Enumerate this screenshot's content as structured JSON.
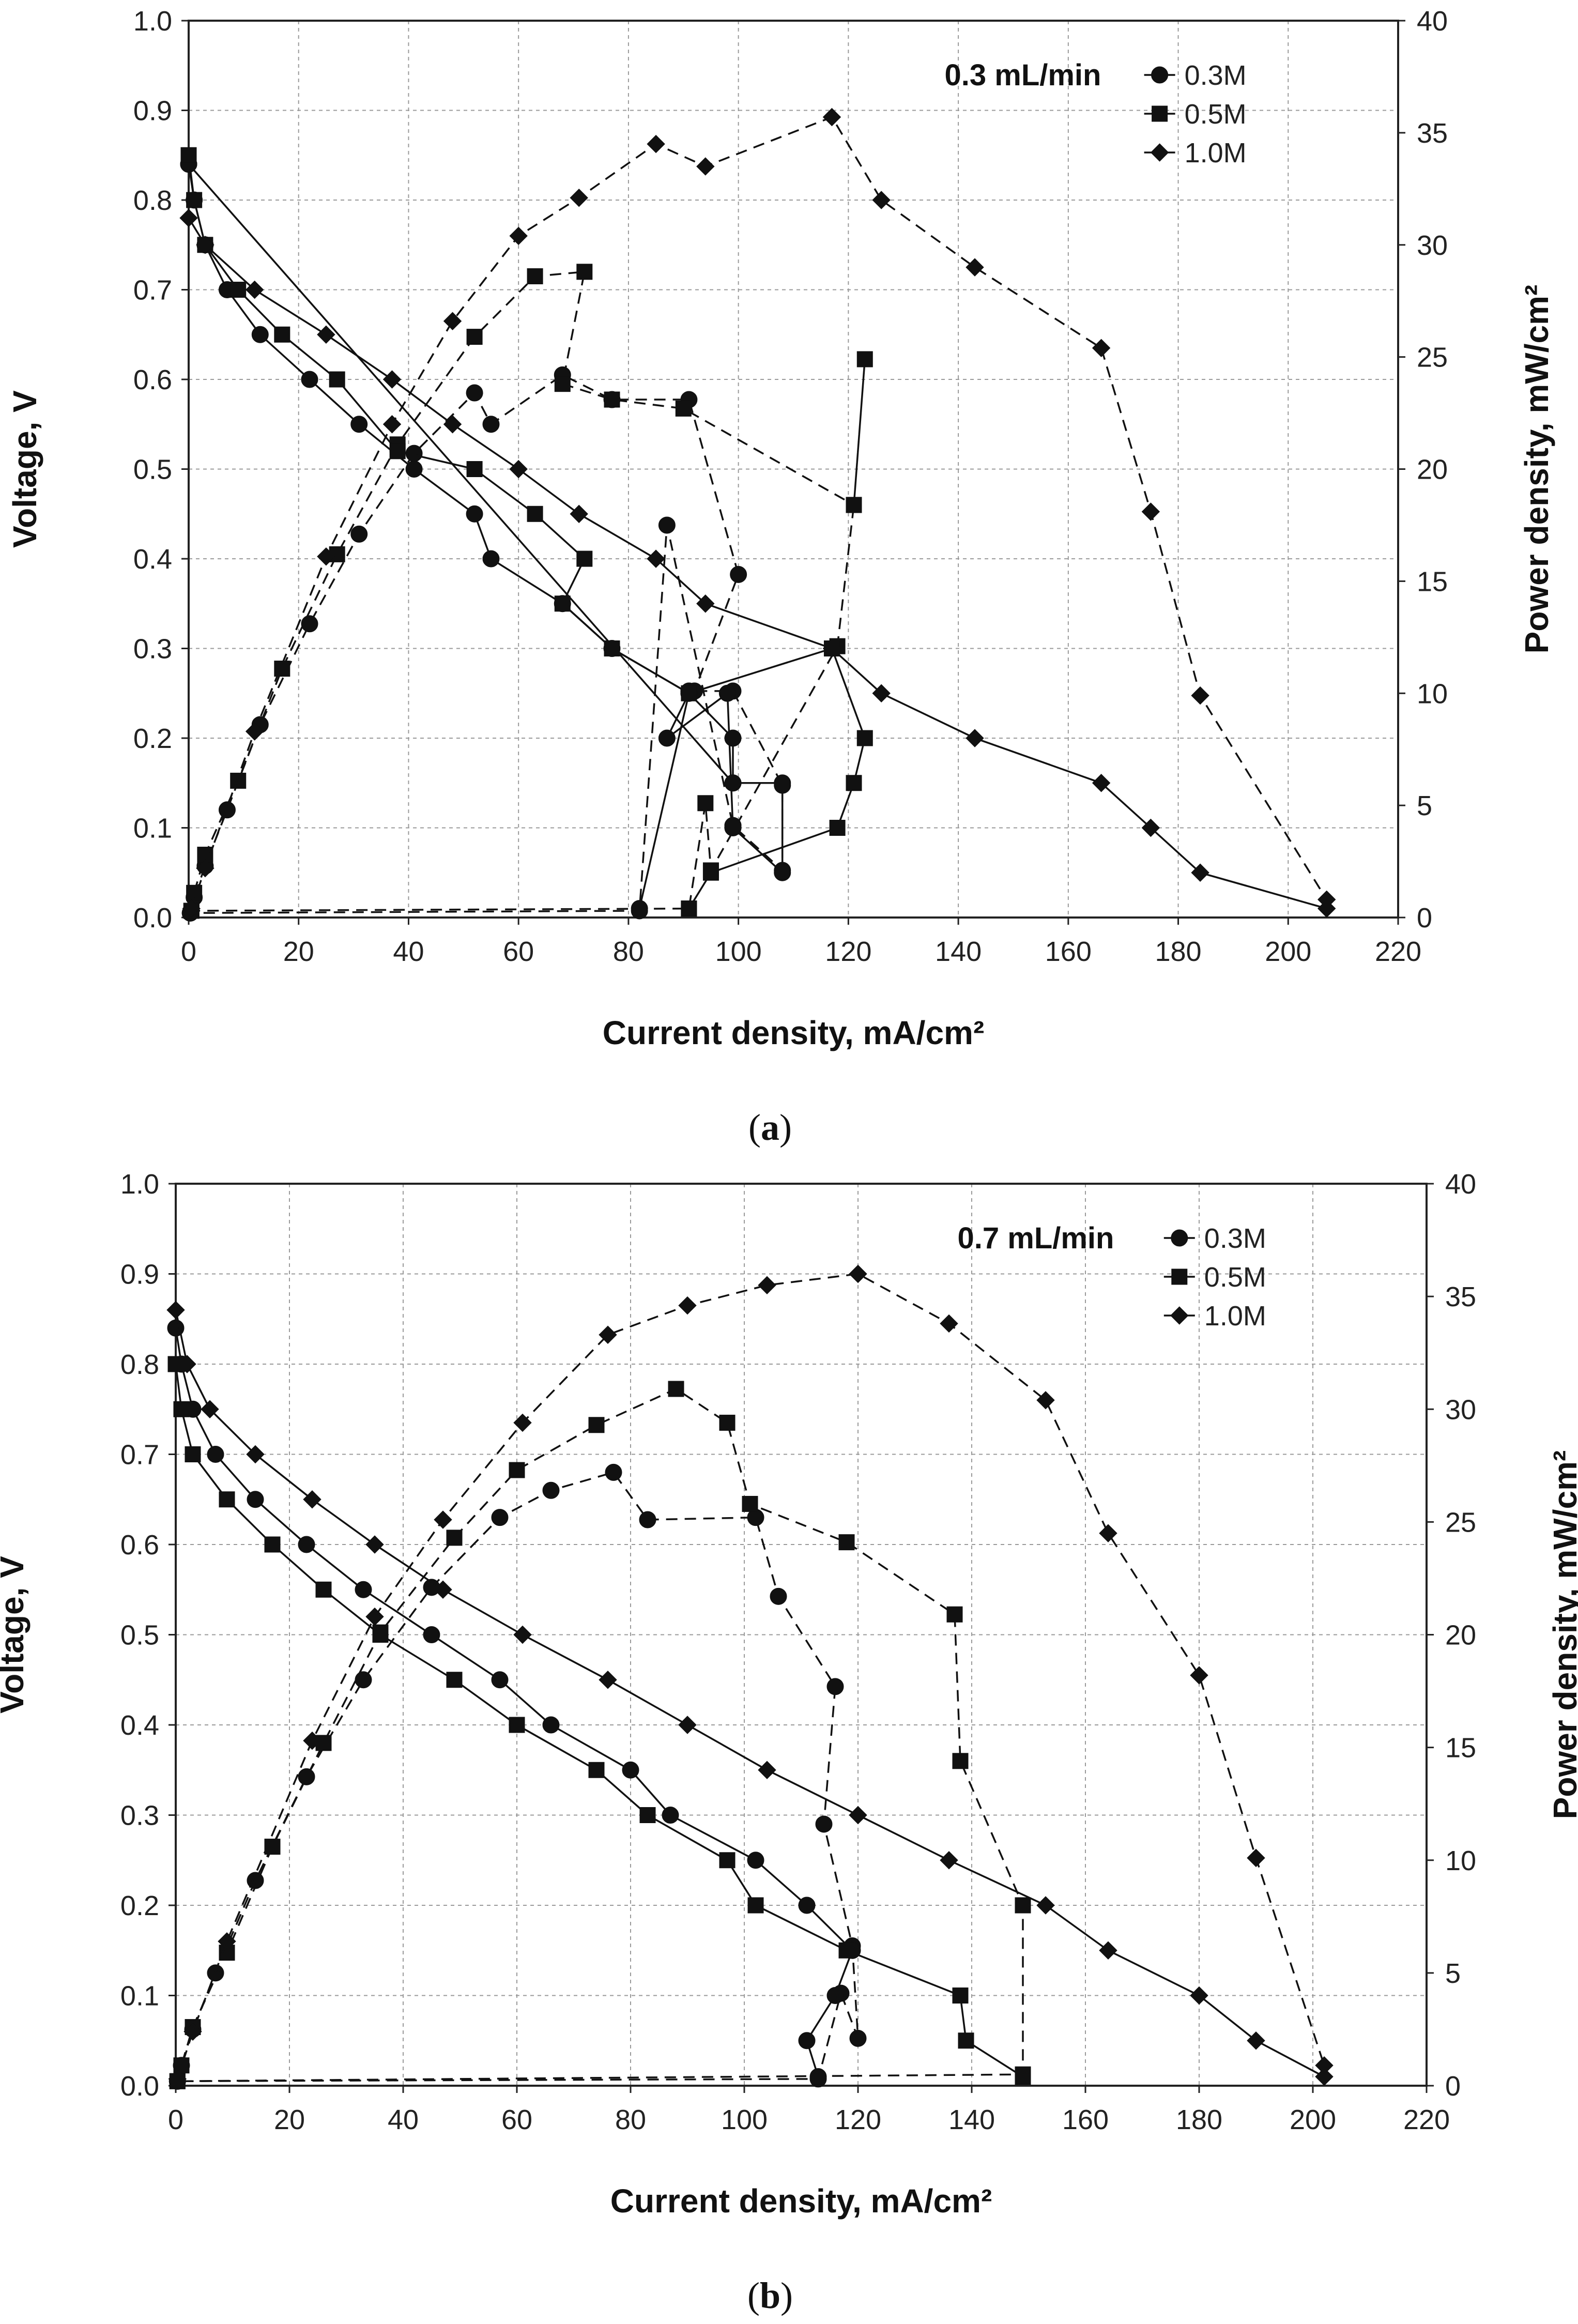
{
  "figure": {
    "panels": [
      "panel_a",
      "panel_b"
    ]
  },
  "chart_data": [
    {
      "id": "panel_a",
      "type": "line",
      "caption_letter": "a",
      "annotation": "0.3 mL/min",
      "xlabel": "Current density, mA/cm²",
      "ylabel_left": "Voltage, V",
      "ylabel_right": "Power density, mW/cm²",
      "xlim": [
        0,
        220
      ],
      "ylim_left": [
        0.0,
        1.0
      ],
      "ylim_right": [
        0,
        40
      ],
      "x_ticks": [
        "0",
        "20",
        "40",
        "60",
        "80",
        "100",
        "120",
        "140",
        "160",
        "180",
        "200",
        "220"
      ],
      "y_left_ticks": [
        "0.0",
        "0.1",
        "0.2",
        "0.3",
        "0.4",
        "0.5",
        "0.6",
        "0.7",
        "0.8",
        "0.9",
        "1.0"
      ],
      "y_right_ticks": [
        "0",
        "5",
        "10",
        "15",
        "20",
        "25",
        "30",
        "35",
        "40"
      ],
      "grid": true,
      "legend": [
        "0.3M",
        "0.5M",
        "1.0M"
      ],
      "series": [
        {
          "name": "0.3M",
          "marker": "circle",
          "polarization": {
            "x": [
              0,
              1,
              3,
              7,
              13,
              22,
              31,
              41,
              52,
              55,
              68,
              77,
              91,
              99,
              99,
              0
            ],
            "y": [
              0.84,
              0.8,
              0.75,
              0.7,
              0.65,
              0.6,
              0.55,
              0.5,
              0.45,
              0.4,
              0.35,
              0.3,
              0.25,
              0.2,
              0.15,
              0.84
            ]
          },
          "power": {
            "x": [
              0.3,
              1,
              3,
              7,
              13,
              22,
              31,
              41,
              52,
              55,
              68,
              77,
              91,
              100,
              92,
              91,
              99,
              108,
              108,
              99,
              99,
              87,
              82,
              0.3
            ],
            "y": [
              0.2,
              0.9,
              2.3,
              4.8,
              8.6,
              13.1,
              17.1,
              20.7,
              23.4,
              22.0,
              24.2,
              23.1,
              23.1,
              15.3,
              10.1,
              10.1,
              10.1,
              5.9,
              2.1,
              4.1,
              4.1,
              17.5,
              0.3,
              0.2
            ]
          },
          "polarization_tail": {
            "x": [
              99,
              108,
              108,
              99,
              98,
              87,
              91,
              82
            ],
            "y": [
              0.15,
              0.15,
              0.05,
              0.1,
              0.25,
              0.2,
              0.25,
              0.01
            ]
          }
        },
        {
          "name": "0.5M",
          "marker": "square",
          "polarization": {
            "x": [
              0,
              1,
              3,
              9,
              17,
              27,
              38,
              52,
              63,
              72,
              68,
              77,
              91,
              117,
              123,
              121,
              118,
              95,
              91
            ],
            "y": [
              0.85,
              0.8,
              0.75,
              0.7,
              0.65,
              0.6,
              0.52,
              0.5,
              0.45,
              0.4,
              0.35,
              0.3,
              0.25,
              0.3,
              0.2,
              0.15,
              0.1,
              0.05,
              0.01
            ]
          },
          "power": {
            "x": [
              0.5,
              1,
              3,
              9,
              17,
              27,
              38,
              52,
              63,
              72,
              68,
              77,
              90,
              121,
              123,
              121,
              118,
              95,
              94,
              91,
              0.5
            ],
            "y": [
              0.3,
              1.1,
              2.8,
              6.1,
              11.1,
              16.2,
              21.1,
              25.9,
              28.6,
              28.8,
              23.8,
              23.1,
              22.7,
              18.4,
              24.9,
              18.4,
              12.1,
              2.1,
              5.1,
              0.4,
              0.3
            ]
          }
        },
        {
          "name": "1.0M",
          "marker": "diamond",
          "polarization": {
            "x": [
              0,
              3,
              12,
              25,
              37,
              48,
              60,
              71,
              85,
              94,
              117,
              126,
              143,
              166,
              175,
              184,
              207
            ],
            "y": [
              0.78,
              0.75,
              0.7,
              0.65,
              0.6,
              0.55,
              0.5,
              0.45,
              0.4,
              0.35,
              0.3,
              0.25,
              0.2,
              0.15,
              0.1,
              0.05,
              0.01
            ]
          },
          "power": {
            "x": [
              0.5,
              3,
              12,
              25,
              37,
              48,
              60,
              71,
              85,
              94,
              117,
              126,
              143,
              166,
              175,
              184,
              207
            ],
            "y": [
              0.4,
              2.2,
              8.3,
              16.1,
              22.0,
              26.6,
              30.4,
              32.1,
              34.5,
              33.5,
              35.7,
              32.0,
              29.0,
              25.4,
              18.1,
              9.9,
              0.8
            ]
          }
        }
      ]
    },
    {
      "id": "panel_b",
      "type": "line",
      "caption_letter": "b",
      "annotation": "0.7 mL/min",
      "xlabel": "Current density, mA/cm²",
      "ylabel_left": "Voltage, V",
      "ylabel_right": "Power density, mW/cm²",
      "xlim": [
        0,
        220
      ],
      "ylim_left": [
        0.0,
        1.0
      ],
      "ylim_right": [
        0,
        40
      ],
      "x_ticks": [
        "0",
        "20",
        "40",
        "60",
        "80",
        "100",
        "120",
        "140",
        "160",
        "180",
        "200",
        "220"
      ],
      "y_left_ticks": [
        "0.0",
        "0.1",
        "0.2",
        "0.3",
        "0.4",
        "0.5",
        "0.6",
        "0.7",
        "0.8",
        "0.9",
        "1.0"
      ],
      "y_right_ticks": [
        "0",
        "5",
        "10",
        "15",
        "20",
        "25",
        "30",
        "35",
        "40"
      ],
      "grid": true,
      "legend": [
        "0.3M",
        "0.5M",
        "1.0M"
      ],
      "series": [
        {
          "name": "0.3M",
          "marker": "circle",
          "polarization": {
            "x": [
              0,
              1,
              3,
              7,
              14,
              23,
              33,
              45,
              57,
              66,
              80,
              87,
              102,
              111,
              119,
              116,
              111,
              113
            ],
            "y": [
              0.84,
              0.8,
              0.75,
              0.7,
              0.65,
              0.6,
              0.55,
              0.5,
              0.45,
              0.4,
              0.35,
              0.3,
              0.25,
              0.2,
              0.15,
              0.1,
              0.05,
              0.01
            ]
          },
          "power": {
            "x": [
              0.3,
              1,
              3,
              7,
              14,
              23,
              33,
              45,
              57,
              66,
              77,
              83,
              102,
              106,
              116,
              114,
              119,
              120,
              117,
              113,
              0.3
            ],
            "y": [
              0.2,
              0.9,
              2.5,
              5.0,
              9.1,
              13.7,
              18.0,
              22.1,
              25.2,
              26.4,
              27.2,
              25.1,
              25.2,
              21.7,
              17.7,
              11.6,
              6.2,
              2.1,
              4.1,
              0.3,
              0.2
            ]
          }
        },
        {
          "name": "0.5M",
          "marker": "square",
          "polarization": {
            "x": [
              0,
              1,
              3,
              9,
              17,
              26,
              36,
              49,
              60,
              74,
              83,
              97,
              102,
              118,
              138,
              139,
              149
            ],
            "y": [
              0.8,
              0.75,
              0.7,
              0.65,
              0.6,
              0.55,
              0.5,
              0.45,
              0.4,
              0.35,
              0.3,
              0.25,
              0.2,
              0.15,
              0.1,
              0.05,
              0.01
            ]
          },
          "power": {
            "x": [
              0.3,
              1,
              3,
              9,
              17,
              26,
              36,
              49,
              60,
              74,
              88,
              97,
              101,
              118,
              137,
              138,
              149,
              149,
              0.3
            ],
            "y": [
              0.2,
              0.9,
              2.6,
              5.9,
              10.6,
              15.2,
              20.1,
              24.3,
              27.3,
              29.3,
              30.9,
              29.4,
              25.8,
              24.1,
              20.9,
              14.4,
              8.0,
              0.5,
              0.2
            ]
          }
        },
        {
          "name": "1.0M",
          "marker": "diamond",
          "polarization": {
            "x": [
              0,
              2,
              6,
              14,
              24,
              35,
              47,
              61,
              76,
              90,
              104,
              120,
              136,
              153,
              164,
              180,
              190,
              202
            ],
            "y": [
              0.86,
              0.8,
              0.75,
              0.7,
              0.65,
              0.6,
              0.55,
              0.5,
              0.45,
              0.4,
              0.35,
              0.3,
              0.25,
              0.2,
              0.15,
              0.1,
              0.05,
              0.01
            ]
          },
          "power": {
            "x": [
              0.3,
              3,
              9,
              24,
              35,
              47,
              61,
              76,
              90,
              104,
              120,
              136,
              153,
              164,
              180,
              190,
              202
            ],
            "y": [
              0.3,
              2.4,
              6.4,
              15.3,
              20.8,
              25.1,
              29.4,
              33.3,
              34.6,
              35.5,
              36.0,
              33.8,
              30.4,
              24.5,
              18.2,
              10.1,
              0.9
            ]
          }
        }
      ]
    }
  ]
}
